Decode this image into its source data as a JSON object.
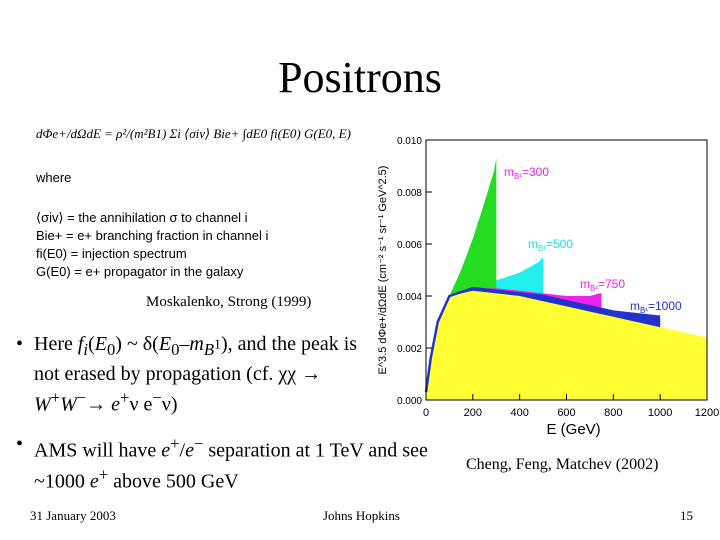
{
  "slide": {
    "title": "Positrons",
    "equation": {
      "formula": "dΦe+/dΩdE = ρ²/(m²B1) Σi ⟨σiv⟩ Bie+ ∫dE0 fi(E0) G(E0, E)",
      "where": "where",
      "defs": [
        "⟨σiv⟩ = the annihilation σ to channel i",
        "Bie+ = e+ branching fraction in channel i",
        "fi(E0) = injection spectrum",
        "G(E0) = e+ propagator in the galaxy"
      ]
    },
    "reference_left": "Moskalenko, Strong (1999)",
    "reference_right": "Cheng, Feng, Matchev (2002)",
    "bullet1": {
      "mark": "•",
      "p1": "Here ",
      "f": "f",
      "i": "i",
      "open": "(",
      "E0": "E",
      "zero": "0",
      "mid": ") ~ δ(",
      "E0b": "E",
      "zerob": "0",
      "dash": "–",
      "m": "m",
      "B1": "B",
      "one": "1",
      "p2": "), and the peak is not erased by propagation (cf. χχ ",
      "arrow1": "→",
      "W": " W",
      "plus": "+",
      "W2": "W",
      "minus": "−",
      "arrow2": "→",
      "e1": " e",
      "plus2": "+",
      "nu1": "ν e",
      "minus2": "−",
      "nu2": "ν)"
    },
    "bullet2": {
      "mark": "•",
      "p1": "AMS will have ",
      "e1": "e",
      "plus": "+",
      "slash": "/",
      "e2": "e",
      "minus": "−",
      "p2": " separation at 1 TeV and see ~1000 ",
      "e3": "e",
      "plus2": "+",
      "p3": " above 500 GeV"
    },
    "footer": {
      "date": "31 January 2003",
      "org": "Johns Hopkins",
      "page": "15"
    }
  },
  "chart_data": {
    "type": "area",
    "xlabel": "E (GeV)",
    "ylabel": "E^3.5 dΦe+/dΩdE (cm⁻² s⁻¹ sr⁻¹ GeV^2.5)",
    "xlim": [
      0,
      1200
    ],
    "ylim": [
      0,
      0.01
    ],
    "x_ticks": [
      "0",
      "200",
      "400",
      "600",
      "800",
      "1000",
      "1200"
    ],
    "y_ticks": [
      "0.000",
      "0.002",
      "0.004",
      "0.006",
      "0.008",
      "0.010"
    ],
    "series": [
      {
        "name": "mB1=300",
        "label": "m",
        "sub": "B¹",
        "val": "=300",
        "color": "#22dd22",
        "cutoff": 300,
        "x": [
          0,
          20,
          50,
          100,
          150,
          200,
          250,
          290,
          300
        ],
        "y": [
          0.0003,
          0.0016,
          0.003,
          0.004,
          0.005,
          0.0062,
          0.0076,
          0.0088,
          0.0093
        ]
      },
      {
        "name": "mB1=500",
        "label": "m",
        "sub": "B¹",
        "val": "=500",
        "color": "#22eeee",
        "cutoff": 500,
        "x": [
          0,
          20,
          50,
          100,
          200,
          300,
          400,
          480,
          500
        ],
        "y": [
          0.0003,
          0.0016,
          0.003,
          0.0039,
          0.0043,
          0.0046,
          0.0049,
          0.0053,
          0.0055
        ]
      },
      {
        "name": "mB1=750",
        "label": "m",
        "sub": "B¹",
        "val": "=750",
        "color": "#ee22ee",
        "cutoff": 750,
        "x": [
          0,
          20,
          50,
          100,
          200,
          300,
          400,
          500,
          600,
          700,
          740,
          750
        ],
        "y": [
          0.0003,
          0.0016,
          0.003,
          0.004,
          0.0043,
          0.0043,
          0.0042,
          0.0041,
          0.004,
          0.004,
          0.0041,
          0.0041
        ]
      },
      {
        "name": "mB1=1000",
        "label": "m",
        "sub": "B¹",
        "val": "=1000",
        "color": "#2233cc",
        "cutoff": 1000,
        "x": [
          0,
          20,
          50,
          100,
          200,
          300,
          400,
          500,
          600,
          700,
          800,
          900,
          1000
        ],
        "y": [
          0.0003,
          0.0016,
          0.003,
          0.004,
          0.0043,
          0.0042,
          0.0041,
          0.004,
          0.0038,
          0.0036,
          0.0034,
          0.0033,
          0.0032
        ]
      },
      {
        "name": "background",
        "color": "#ffff33",
        "cutoff": 1200,
        "x": [
          0,
          20,
          50,
          100,
          200,
          300,
          400,
          500,
          600,
          700,
          800,
          900,
          1000,
          1100,
          1200
        ],
        "y": [
          0.0003,
          0.0016,
          0.003,
          0.004,
          0.0042,
          0.0041,
          0.004,
          0.0038,
          0.0036,
          0.0034,
          0.0032,
          0.003,
          0.0028,
          0.0026,
          0.0024
        ]
      }
    ]
  }
}
